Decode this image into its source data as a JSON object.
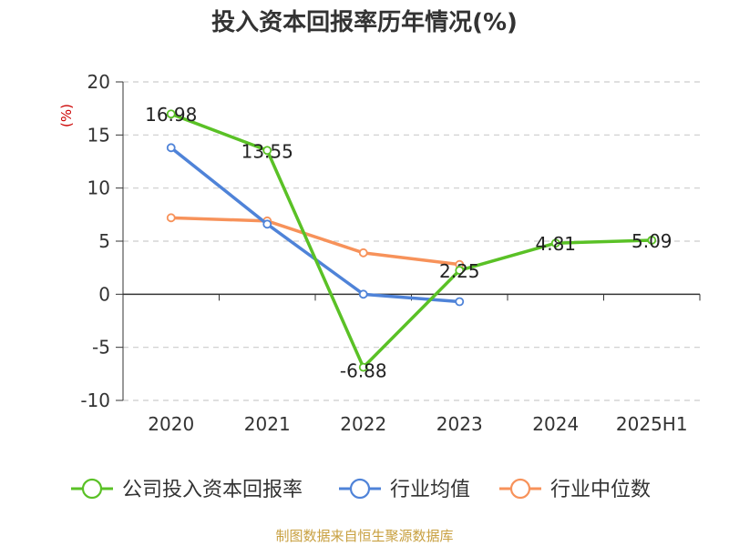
{
  "chart_data": {
    "type": "line",
    "title": "投入资本回报率历年情况(%)",
    "ylabel": "(%)",
    "xlabel": "",
    "categories": [
      "2020",
      "2021",
      "2022",
      "2023",
      "2024",
      "2025H1"
    ],
    "yticks": [
      "20",
      "15",
      "10",
      "5",
      "0",
      "-5",
      "-10"
    ],
    "ylim": [
      -10,
      20
    ],
    "grid": true,
    "legend_position": "bottom",
    "series": [
      {
        "name": "公司投入资本回报率",
        "color": "#5ac126",
        "values": [
          16.98,
          13.55,
          -6.88,
          2.25,
          4.81,
          5.09
        ],
        "labels": [
          "16.98",
          "13.55",
          "-6.88",
          "2.25",
          "4.81",
          "5.09"
        ]
      },
      {
        "name": "行业均值",
        "color": "#4f83d8",
        "values": [
          13.8,
          6.6,
          0.0,
          -0.7,
          null,
          null
        ]
      },
      {
        "name": "行业中位数",
        "color": "#f7925a",
        "values": [
          7.2,
          6.9,
          3.9,
          2.8,
          null,
          null
        ]
      }
    ]
  },
  "source": "制图数据来自恒生聚源数据库"
}
